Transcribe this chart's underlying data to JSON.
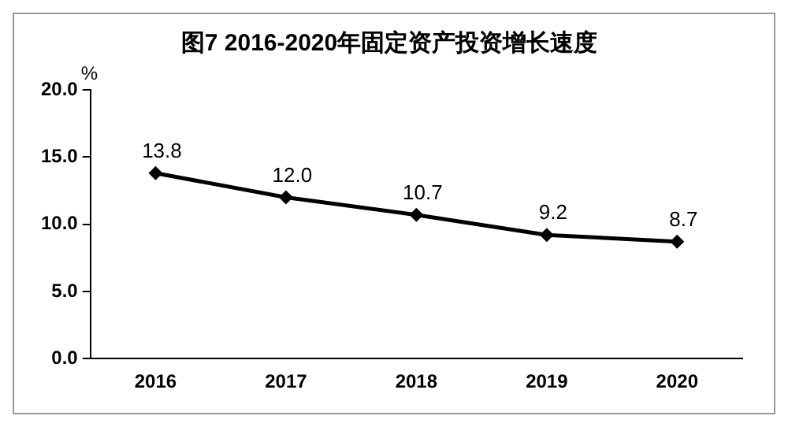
{
  "chart_data": {
    "type": "line",
    "title": "图7 2016-2020年固定资产投资增长速度",
    "ylabel": "%",
    "categories": [
      "2016",
      "2017",
      "2018",
      "2019",
      "2020"
    ],
    "series": [
      {
        "color": "#000000",
        "values": [
          13.8,
          12.0,
          10.7,
          9.2,
          8.7
        ],
        "value_labels": [
          "13.8",
          "12.0",
          "10.7",
          "9.2",
          "8.7"
        ]
      }
    ],
    "ylim": [
      0,
      20
    ],
    "yticks": [
      {
        "value": 0,
        "label": "0.0"
      },
      {
        "value": 5,
        "label": "5.0"
      },
      {
        "value": 10,
        "label": "10.0"
      },
      {
        "value": 15,
        "label": "15.0"
      },
      {
        "value": 20,
        "label": "20.0"
      }
    ],
    "grid": false,
    "legend": false,
    "marker": "diamond",
    "line_style": "solid"
  }
}
